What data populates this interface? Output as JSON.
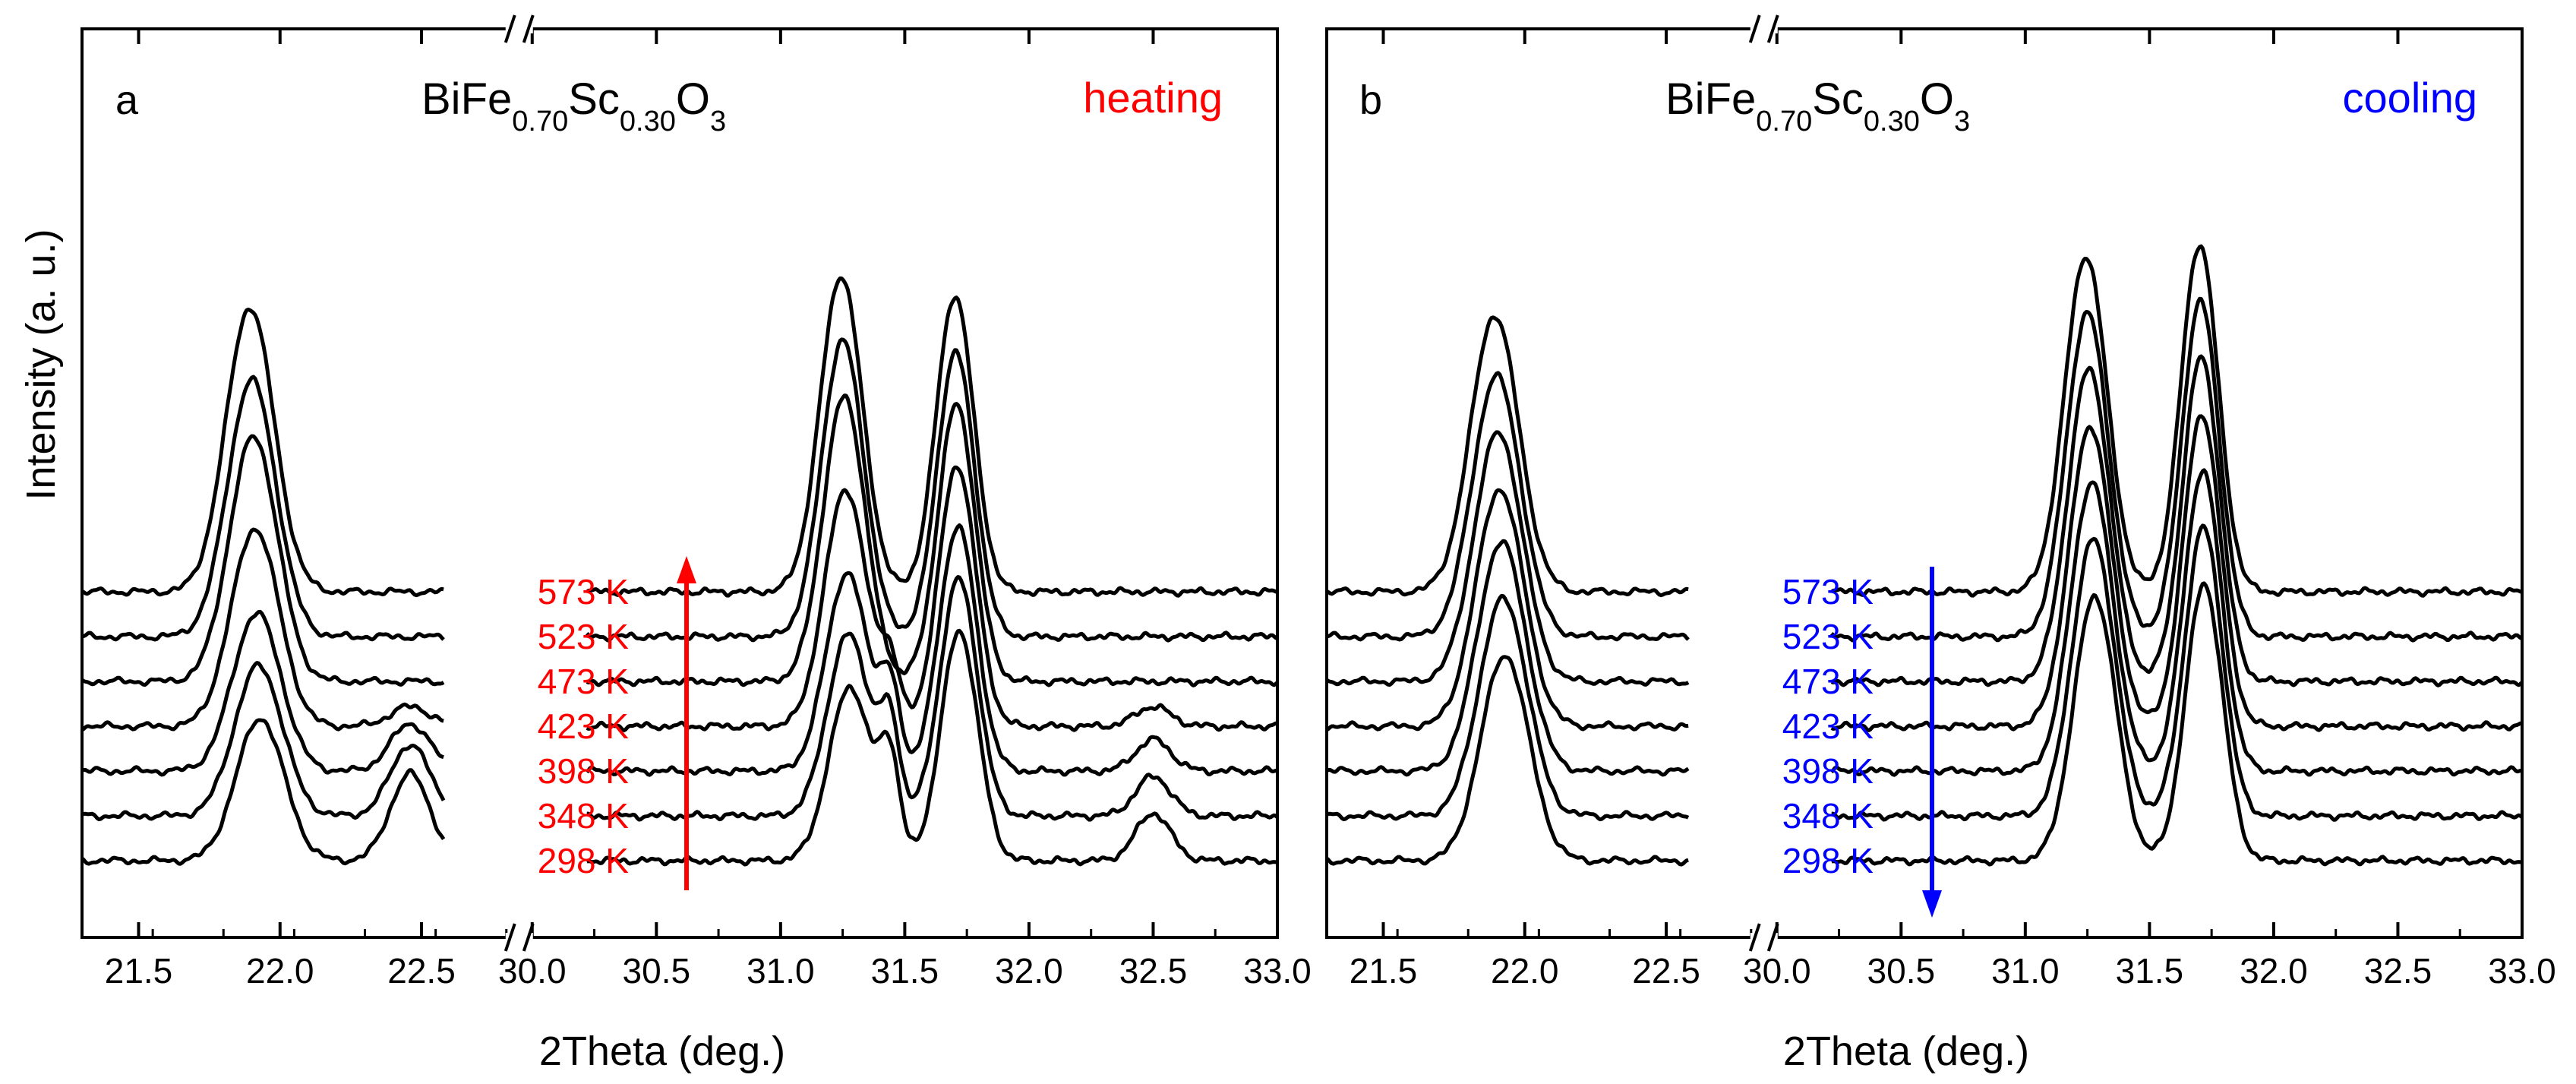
{
  "chart_data": [
    {
      "type": "line",
      "panel_letter": "a",
      "formula": {
        "base1": "BiFe",
        "sub1": "0.70",
        "base2": "Sc",
        "sub2": "0.30",
        "base3": "O",
        "sub3": "3"
      },
      "mode_label": "heating",
      "mode_color": "#ff0000",
      "arrow_direction": "up",
      "xlabel": "2Theta (deg.)",
      "ylabel": "Intensity (a. u.)",
      "x_segments": [
        {
          "range": [
            21.3,
            22.8
          ],
          "ticks": [
            21.5,
            22.0,
            22.5
          ],
          "tick_labels": [
            "21.5",
            "22.0",
            "22.5"
          ]
        },
        {
          "range": [
            30.0,
            33.0
          ],
          "ticks": [
            30.0,
            30.5,
            31.0,
            31.5,
            32.0,
            32.5,
            33.0
          ],
          "tick_labels": [
            "30.0",
            "30.5",
            "31.0",
            "31.5",
            "32.0",
            "32.5",
            "33.0"
          ]
        }
      ],
      "series_labels": [
        "573 K",
        "523 K",
        "473 K",
        "423 K",
        "398 K",
        "348 K",
        "298 K"
      ],
      "series_relative_peak_heights": [
        {
          "name": "573 K",
          "p1": 0.72,
          "p2": 0.0,
          "p3": 0.8,
          "p4": 0.0,
          "p5": 0.75,
          "p6": 0.0
        },
        {
          "name": "523 K",
          "p1": 0.65,
          "p2": 0.0,
          "p3": 0.75,
          "p4": 0.0,
          "p5": 0.72,
          "p6": 0.0
        },
        {
          "name": "473 K",
          "p1": 0.62,
          "p2": 0.0,
          "p3": 0.72,
          "p4": 0.0,
          "p5": 0.7,
          "p6": 0.0
        },
        {
          "name": "423 K",
          "p1": 0.5,
          "p2": 0.05,
          "p3": 0.6,
          "p4": 0.15,
          "p5": 0.66,
          "p6": 0.05
        },
        {
          "name": "398 K",
          "p1": 0.4,
          "p2": 0.12,
          "p3": 0.5,
          "p4": 0.2,
          "p5": 0.62,
          "p6": 0.08
        },
        {
          "name": "348 K",
          "p1": 0.38,
          "p2": 0.18,
          "p3": 0.46,
          "p4": 0.22,
          "p5": 0.6,
          "p6": 0.1
        },
        {
          "name": "298 K",
          "p1": 0.36,
          "p2": 0.22,
          "p3": 0.44,
          "p4": 0.24,
          "p5": 0.58,
          "p6": 0.12
        }
      ]
    },
    {
      "type": "line",
      "panel_letter": "b",
      "formula": {
        "base1": "BiFe",
        "sub1": "0.70",
        "base2": "Sc",
        "sub2": "0.30",
        "base3": "O",
        "sub3": "3"
      },
      "mode_label": "cooling",
      "mode_color": "#0000ff",
      "arrow_direction": "down",
      "xlabel": "2Theta (deg.)",
      "ylabel": "",
      "x_segments": [
        {
          "range": [
            21.3,
            22.8
          ],
          "ticks": [
            21.5,
            22.0,
            22.5
          ],
          "tick_labels": [
            "21.5",
            "22.0",
            "22.5"
          ]
        },
        {
          "range": [
            30.0,
            33.0
          ],
          "ticks": [
            30.0,
            30.5,
            31.0,
            31.5,
            32.0,
            32.5,
            33.0
          ],
          "tick_labels": [
            "30.0",
            "30.5",
            "31.0",
            "31.5",
            "32.0",
            "32.5",
            "33.0"
          ]
        }
      ],
      "series_labels": [
        "573 K",
        "523 K",
        "473 K",
        "423 K",
        "398 K",
        "348 K",
        "298 K"
      ],
      "series_relative_peak_heights": [
        {
          "name": "573 K",
          "p1": 0.7,
          "p3": 0.85,
          "p5": 0.88
        },
        {
          "name": "523 K",
          "p1": 0.66,
          "p3": 0.82,
          "p5": 0.85
        },
        {
          "name": "473 K",
          "p1": 0.63,
          "p3": 0.79,
          "p5": 0.82
        },
        {
          "name": "423 K",
          "p1": 0.6,
          "p3": 0.76,
          "p5": 0.79
        },
        {
          "name": "398 K",
          "p1": 0.58,
          "p3": 0.73,
          "p5": 0.76
        },
        {
          "name": "348 K",
          "p1": 0.55,
          "p3": 0.7,
          "p5": 0.73
        },
        {
          "name": "298 K",
          "p1": 0.52,
          "p3": 0.67,
          "p5": 0.7
        }
      ]
    }
  ]
}
